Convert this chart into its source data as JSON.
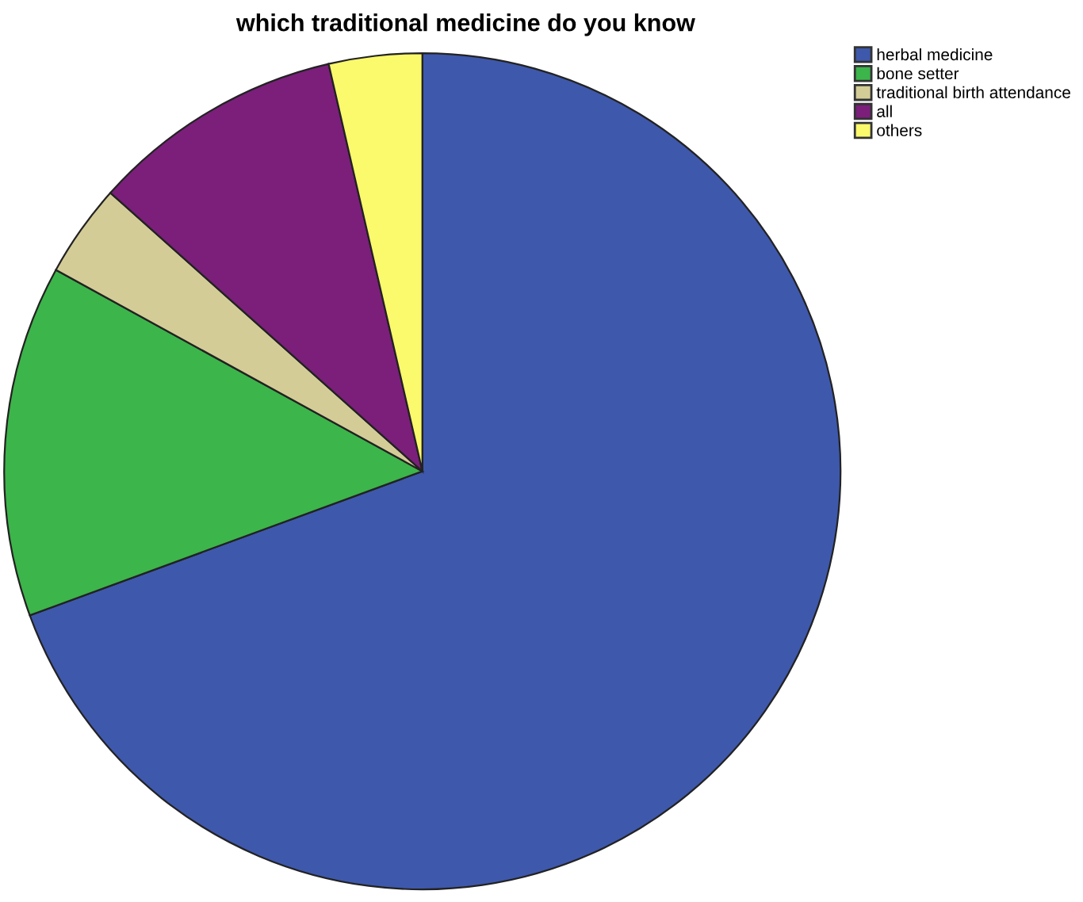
{
  "chart_data": {
    "type": "pie",
    "title": "which traditional medicine do you know",
    "categories": [
      "herbal medicine",
      "bone setter",
      "traditional birth attendance",
      "all",
      "others"
    ],
    "values": [
      69.4,
      13.6,
      3.6,
      9.8,
      3.6
    ],
    "colors": [
      "#3e58ac",
      "#3cb54a",
      "#d4cc97",
      "#7b1f7b",
      "#fbf96c"
    ],
    "legend": "top right"
  }
}
